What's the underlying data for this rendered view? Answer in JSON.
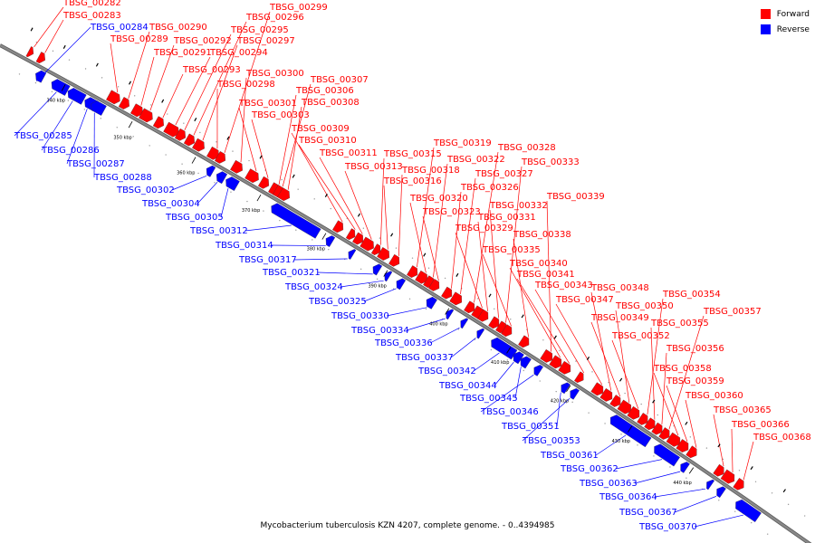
{
  "legend": {
    "forward": "Forward",
    "reverse": "Reverse"
  },
  "colors": {
    "forward": "#ff0000",
    "reverse": "#0000ff",
    "backbone": "#888888"
  },
  "caption": "Mycobacterium tuberculosis KZN 4207, complete genome. - 0..4394985",
  "ticks": [
    "340 kbp",
    "350 kbp",
    "360 kbp",
    "370 kbp",
    "380 kbp",
    "390 kbp",
    "400 kbp",
    "410 kbp",
    "420 kbp",
    "430 kbp",
    "440 kbp"
  ],
  "forward_genes": [
    "TBSG_00282",
    "TBSG_00283",
    "TBSG_00289",
    "TBSG_00290",
    "TBSG_00291",
    "TBSG_00292",
    "TBSG_00293",
    "TBSG_00294",
    "TBSG_00295",
    "TBSG_00296",
    "TBSG_00297",
    "TBSG_00298",
    "TBSG_00299",
    "TBSG_00300",
    "TBSG_00301",
    "TBSG_00303",
    "TBSG_00306",
    "TBSG_00307",
    "TBSG_00308",
    "TBSG_00309",
    "TBSG_00310",
    "TBSG_00311",
    "TBSG_00313",
    "TBSG_00315",
    "TBSG_00316",
    "TBSG_00318",
    "TBSG_00319",
    "TBSG_00320",
    "TBSG_00322",
    "TBSG_00323",
    "TBSG_00326",
    "TBSG_00327",
    "TBSG_00328",
    "TBSG_00329",
    "TBSG_00331",
    "TBSG_00332",
    "TBSG_00333",
    "TBSG_00335",
    "TBSG_00338",
    "TBSG_00339",
    "TBSG_00340",
    "TBSG_00341",
    "TBSG_00343",
    "TBSG_00347",
    "TBSG_00348",
    "TBSG_00349",
    "TBSG_00350",
    "TBSG_00352",
    "TBSG_00354",
    "TBSG_00355",
    "TBSG_00356",
    "TBSG_00357",
    "TBSG_00358",
    "TBSG_00359",
    "TBSG_00360",
    "TBSG_00365",
    "TBSG_00366",
    "TBSG_00368"
  ],
  "reverse_genes": [
    "TBSG_00284",
    "TBSG_00285",
    "TBSG_00286",
    "TBSG_00287",
    "TBSG_00288",
    "TBSG_00302",
    "TBSG_00304",
    "TBSG_00305",
    "TBSG_00312",
    "TBSG_00314",
    "TBSG_00317",
    "TBSG_00321",
    "TBSG_00324",
    "TBSG_00325",
    "TBSG_00330",
    "TBSG_00334",
    "TBSG_00336",
    "TBSG_00337",
    "TBSG_00342",
    "TBSG_00344",
    "TBSG_00345",
    "TBSG_00346",
    "TBSG_00351",
    "TBSG_00353",
    "TBSG_00361",
    "TBSG_00362",
    "TBSG_00363",
    "TBSG_00364",
    "TBSG_00367",
    "TBSG_00370"
  ]
}
